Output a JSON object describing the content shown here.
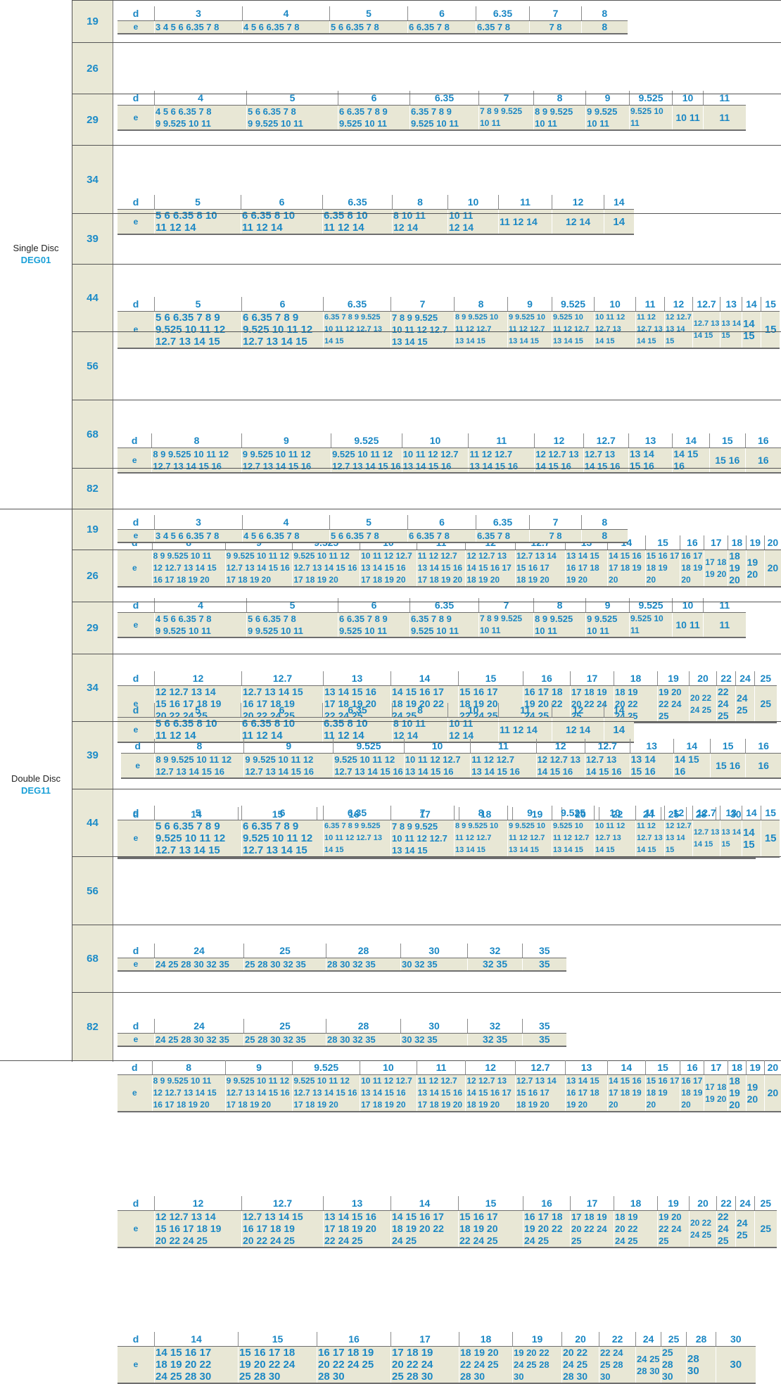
{
  "groups": [
    {
      "line1": "Single Disc",
      "line2": "DEG01"
    },
    {
      "line1": "Double Disc",
      "line2": "DEG11"
    }
  ],
  "labels": {
    "d": "d",
    "e": "e"
  },
  "rows": [
    {
      "size": "19",
      "d": [
        "3",
        "4",
        "5",
        "6",
        "6.35",
        "7",
        "8"
      ],
      "e": [
        "3 4 5 6 6.35 7 8",
        "4 5 6 6.35 7 8",
        "5 6 6.35 7 8",
        "6 6.35 7 8",
        "6.35 7 8",
        "7 8",
        "8"
      ]
    },
    {
      "size": "26",
      "d": [
        "4",
        "5",
        "6",
        "6.35",
        "7",
        "8",
        "9",
        "9.525",
        "10",
        "11"
      ],
      "e": [
        "4 5 6 6.35 7 8\n9 9.525 10 11",
        "5 6 6.35 7 8\n9 9.525 10 11",
        "6 6.35 7 8 9\n9.525 10 11",
        "6.35 7 8 9\n9.525 10 11",
        "7 8 9 9.525\n10 11",
        "8 9 9.525\n10 11",
        "9 9.525\n10 11",
        "9.525 10\n11",
        "10 11",
        "11"
      ]
    },
    {
      "size": "29",
      "d": [
        "5",
        "6",
        "6.35",
        "8",
        "10",
        "11",
        "12",
        "14"
      ],
      "e": [
        "5 6 6.35 8 10\n11 12 14",
        "6 6.35 8 10\n11 12 14",
        "6.35 8 10\n11 12 14",
        "8 10 11\n12 14",
        "10 11\n12 14",
        "11 12 14",
        "12 14",
        "14"
      ]
    },
    {
      "size": "34",
      "d": [
        "5",
        "6",
        "6.35",
        "7",
        "8",
        "9",
        "9.525",
        "10",
        "11",
        "12",
        "12.7",
        "13",
        "14",
        "15"
      ],
      "e": [
        "5 6 6.35 7 8 9\n9.525 10 11 12\n12.7 13 14 15",
        "6 6.35 7 8 9\n9.525 10 11 12\n12.7 13 14 15",
        "6.35 7 8 9 9.525\n10 11 12 12.7 13\n14 15",
        "7 8 9 9.525\n10 11 12 12.7\n13 14 15",
        "8 9 9.525 10\n11 12 12.7\n13 14 15",
        "9 9.525 10\n11 12 12.7\n13 14 15",
        "9.525 10\n11 12 12.7\n13 14 15",
        "10 11 12\n12.7 13\n14 15",
        "11 12\n12.7 13\n14 15",
        "12 12.7\n13 14\n15",
        "12.7 13\n14 15",
        "13 14\n15",
        "14\n15",
        "15"
      ]
    },
    {
      "size": "39",
      "d": [
        "8",
        "9",
        "9.525",
        "10",
        "11",
        "12",
        "12.7",
        "13",
        "14",
        "15",
        "16"
      ],
      "e": [
        "8 9 9.525 10 11 12\n12.7 13 14 15 16",
        "9 9.525 10 11 12\n12.7 13 14 15 16",
        "9.525 10 11 12\n12.7 13 14 15 16",
        "10 11 12 12.7\n13 14 15 16",
        "11 12 12.7\n13 14 15 16",
        "12 12.7 13\n14 15 16",
        "12.7 13\n14 15 16",
        "13 14\n15 16",
        "14 15\n16",
        "15 16",
        "16"
      ]
    },
    {
      "size": "44",
      "d": [
        "8",
        "9",
        "9.525",
        "10",
        "11",
        "12",
        "12.7",
        "13",
        "14",
        "15",
        "16",
        "17",
        "18",
        "19",
        "20"
      ],
      "e": [
        "8 9 9.525 10 11\n12 12.7 13 14 15\n16 17 18 19 20",
        "9 9.525 10 11 12\n12.7 13 14 15 16\n17 18 19 20",
        "9.525 10 11 12\n12.7 13 14 15 16\n17 18 19 20",
        "10 11 12 12.7\n13 14 15 16\n17 18 19 20",
        "11 12 12.7\n13 14 15 16\n17 18 19 20",
        "12 12.7 13\n14 15 16 17\n18 19 20",
        "12.7 13 14\n15 16 17\n18 19 20",
        "13 14 15\n16 17 18\n19 20",
        "14 15 16\n17 18 19\n20",
        "15 16 17\n18 19\n20",
        "16 17\n18 19\n20",
        "17 18\n19 20",
        "18\n19\n20",
        "19\n20",
        "20"
      ]
    },
    {
      "size": "56",
      "d": [
        "12",
        "12.7",
        "13",
        "14",
        "15",
        "16",
        "17",
        "18",
        "19",
        "20",
        "22",
        "24",
        "25"
      ],
      "e": [
        "12 12.7 13 14\n15 16 17 18 19\n20 22 24 25",
        "12.7 13 14 15\n16 17 18 19\n20 22 24 25",
        "13 14 15 16\n17 18 19 20\n22 24 25",
        "14 15 16 17\n18 19 20 22\n24 25",
        "15 16 17\n18 19 20\n22 24 25",
        "16 17 18\n19 20 22\n24 25",
        "17 18 19\n20 22 24\n25",
        "18 19\n20 22\n24 25",
        "19 20\n22 24\n25",
        "20 22\n24 25",
        "22\n24\n25",
        "24\n25",
        "25"
      ]
    },
    {
      "size": "68",
      "d": [
        "14",
        "15",
        "16",
        "17",
        "18",
        "19",
        "20",
        "22",
        "24",
        "25",
        "28",
        "30"
      ],
      "e": [
        "14 15 16 17\n18 19 20 22\n24 25 28 30",
        "15 16 17 18\n19 20 22 24\n25 28 30",
        "16 17 18 19\n20 22 24 25\n28 30",
        "17 18 19\n20 22 24\n25 28 30",
        "18 19 20\n22 24 25\n28 30",
        "19 20 22\n24 25 28\n30",
        "20 22\n24 25\n28 30",
        "22 24\n25 28\n30",
        "24 25\n28 30",
        "25\n28\n30",
        "28\n30",
        "30"
      ]
    },
    {
      "size": "82",
      "d": [
        "24",
        "25",
        "28",
        "30",
        "32",
        "35"
      ],
      "e": [
        "24 25 28 30 32 35",
        "25 28 30 32 35",
        "28 30 32 35",
        "30 32 35",
        "32 35",
        "35"
      ]
    }
  ]
}
